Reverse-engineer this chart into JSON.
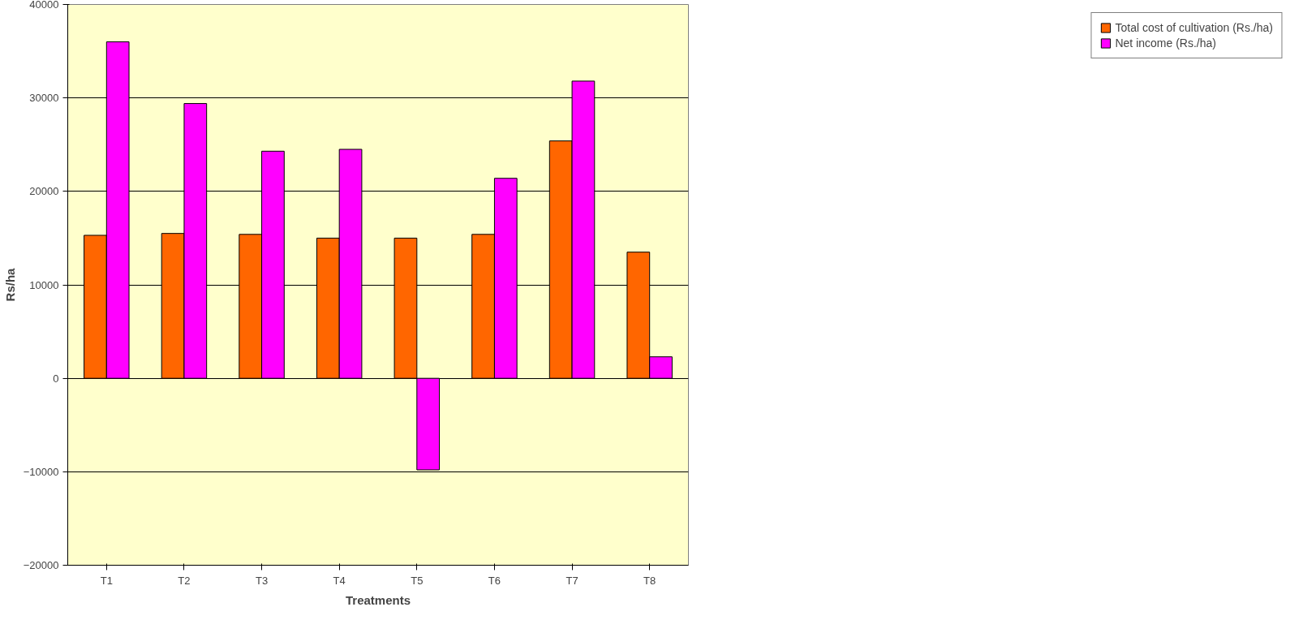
{
  "chart_data": {
    "type": "bar",
    "xlabel": "Treatments",
    "ylabel": "Rs/ha",
    "categories": [
      "T1",
      "T2",
      "T3",
      "T4",
      "T5",
      "T6",
      "T7",
      "T8"
    ],
    "series": [
      {
        "name": "Total cost of cultivation (Rs./ha)",
        "color": "#ff6600",
        "values": [
          15300,
          15500,
          15400,
          15000,
          15000,
          15400,
          25400,
          13500
        ]
      },
      {
        "name": "Net income (Rs./ha)",
        "color": "#ff00ff",
        "values": [
          36000,
          29400,
          24300,
          24500,
          -9800,
          21400,
          31800,
          2300
        ]
      }
    ],
    "ylim": [
      -20000,
      40000
    ],
    "yticks": [
      -20000,
      -10000,
      0,
      10000,
      20000,
      30000,
      40000
    ],
    "grid": "y",
    "legend": "right"
  }
}
